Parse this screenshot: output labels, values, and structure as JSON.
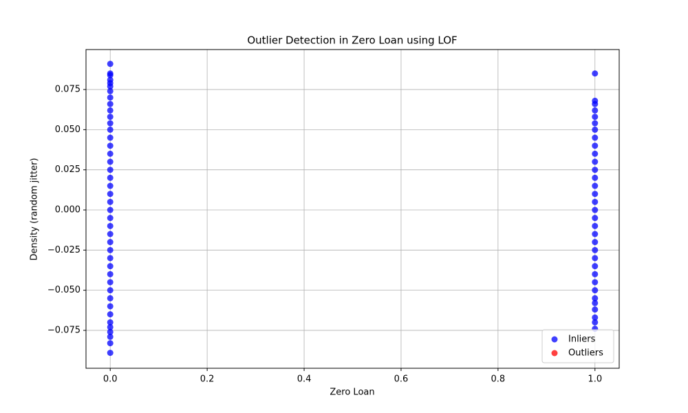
{
  "chart_data": {
    "type": "scatter",
    "title": "Outlier Detection in Zero Loan using LOF",
    "xlabel": "Zero Loan",
    "ylabel": "Density (random jitter)",
    "xlim": [
      -0.05,
      1.05
    ],
    "ylim": [
      -0.0986,
      0.0999
    ],
    "xticks": [
      {
        "value": 0,
        "label": "0.0"
      },
      0.2,
      0.4,
      0.6,
      0.8,
      {
        "value": 1,
        "label": "1.0"
      }
    ],
    "yticks": [
      {
        "value": -0.075,
        "label": "−0.075"
      },
      {
        "value": -0.05,
        "label": "−0.050"
      },
      {
        "value": -0.025,
        "label": "−0.025"
      },
      {
        "value": 0,
        "label": "0.000"
      },
      0.025,
      {
        "value": 0.05,
        "label": "0.050"
      },
      0.075
    ],
    "grid": true,
    "legend": "lower right",
    "series": [
      {
        "name": "Inliers",
        "color": "#0000ff",
        "x": [
          0,
          0,
          0,
          0,
          0,
          0,
          0,
          0,
          0,
          0,
          0,
          0,
          0,
          0,
          0,
          0,
          0,
          0,
          0,
          0,
          0,
          0,
          0,
          0,
          0,
          0,
          0,
          0,
          0,
          0,
          0,
          0,
          0,
          0,
          0,
          0,
          0,
          0,
          0,
          0,
          0,
          0,
          1,
          1,
          1,
          1,
          1,
          1,
          1,
          1,
          1,
          1,
          1,
          1,
          1,
          1,
          1,
          1,
          1,
          1,
          1,
          1,
          1,
          1,
          1,
          1,
          1,
          1,
          1,
          1,
          1,
          1,
          1,
          1,
          1
        ],
        "y": [
          0.091,
          0.085,
          0.084,
          0.081,
          0.079,
          0.077,
          0.074,
          0.07,
          0.066,
          0.062,
          0.058,
          0.054,
          0.05,
          0.045,
          0.04,
          0.035,
          0.03,
          0.025,
          0.02,
          0.015,
          0.01,
          0.005,
          0,
          -0.005,
          -0.01,
          -0.015,
          -0.02,
          -0.025,
          -0.03,
          -0.035,
          -0.04,
          -0.045,
          -0.05,
          -0.055,
          -0.06,
          -0.065,
          -0.07,
          -0.073,
          -0.076,
          -0.079,
          -0.083,
          -0.089,
          0.085,
          0.068,
          0.066,
          0.062,
          0.058,
          0.054,
          0.05,
          0.045,
          0.04,
          0.035,
          0.03,
          0.025,
          0.02,
          0.015,
          0.01,
          0.005,
          0,
          -0.005,
          -0.01,
          -0.015,
          -0.02,
          -0.025,
          -0.03,
          -0.035,
          -0.04,
          -0.045,
          -0.05,
          -0.055,
          -0.058,
          -0.062,
          -0.067,
          -0.07,
          -0.074
        ]
      },
      {
        "name": "Outliers",
        "color": "#ff0000",
        "x": [],
        "y": []
      }
    ]
  }
}
